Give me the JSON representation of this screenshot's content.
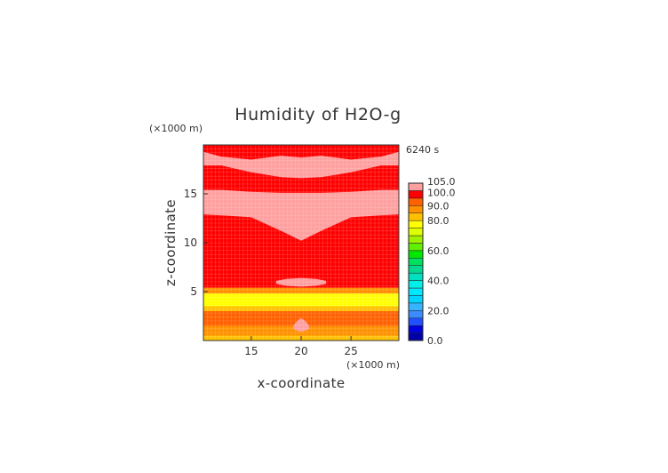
{
  "chart_data": {
    "type": "heatmap",
    "title": "Humidity of H2O-g",
    "time_label": "6240 s",
    "xlabel": "x-coordinate",
    "ylabel": "z-coordinate",
    "x_unit": "(×1000 m)",
    "y_unit": "(×1000 m)",
    "xlim": [
      10.2,
      29.8
    ],
    "ylim": [
      0.0,
      20.0
    ],
    "x_ticks": [
      {
        "value": 15,
        "label": "15"
      },
      {
        "value": 20,
        "label": "20"
      },
      {
        "value": 25,
        "label": "25"
      }
    ],
    "y_ticks": [
      {
        "value": 5,
        "label": "5"
      },
      {
        "value": 10,
        "label": "10"
      },
      {
        "value": 15,
        "label": "15"
      }
    ],
    "colorbar": {
      "ticks": [
        "0.0",
        "20.0",
        "40.0",
        "60.0",
        "80.0",
        "90.0",
        "100.0",
        "105.0"
      ],
      "levels": [
        {
          "lo": 0,
          "hi": 5,
          "color": "#0000a8"
        },
        {
          "lo": 5,
          "hi": 10,
          "color": "#0000e0"
        },
        {
          "lo": 10,
          "hi": 15,
          "color": "#2050ff"
        },
        {
          "lo": 15,
          "hi": 20,
          "color": "#3c8cff"
        },
        {
          "lo": 20,
          "hi": 25,
          "color": "#38b4ff"
        },
        {
          "lo": 25,
          "hi": 30,
          "color": "#00d4ff"
        },
        {
          "lo": 30,
          "hi": 35,
          "color": "#00e8ff"
        },
        {
          "lo": 35,
          "hi": 40,
          "color": "#00f0e8"
        },
        {
          "lo": 40,
          "hi": 45,
          "color": "#00e0c0"
        },
        {
          "lo": 45,
          "hi": 50,
          "color": "#00d890"
        },
        {
          "lo": 50,
          "hi": 55,
          "color": "#00e060"
        },
        {
          "lo": 55,
          "hi": 60,
          "color": "#00e800"
        },
        {
          "lo": 60,
          "hi": 65,
          "color": "#60f000"
        },
        {
          "lo": 65,
          "hi": 70,
          "color": "#a0f000"
        },
        {
          "lo": 70,
          "hi": 75,
          "color": "#e0ff00"
        },
        {
          "lo": 75,
          "hi": 80,
          "color": "#ffff00"
        },
        {
          "lo": 80,
          "hi": 85,
          "color": "#ffc000"
        },
        {
          "lo": 85,
          "hi": 90,
          "color": "#ff9000"
        },
        {
          "lo": 90,
          "hi": 95,
          "color": "#ff6000"
        },
        {
          "lo": 95,
          "hi": 100,
          "color": "#ff0000"
        },
        {
          "lo": 100,
          "hi": 105,
          "color": "#ffa0a0"
        }
      ]
    },
    "regions": [
      {
        "z_lo": 0.0,
        "z_hi": 0.5,
        "value": 80
      },
      {
        "z_lo": 0.5,
        "z_hi": 1.5,
        "value": 87
      },
      {
        "z_lo": 1.5,
        "z_hi": 3.0,
        "value": 92
      },
      {
        "z_lo": 3.0,
        "z_hi": 3.5,
        "value": 82
      },
      {
        "z_lo": 3.5,
        "z_hi": 4.8,
        "value": 77
      },
      {
        "z_lo": 4.8,
        "z_hi": 5.4,
        "value": 87
      },
      {
        "z_lo": 5.4,
        "z_hi": 20.0,
        "value": 97
      }
    ],
    "saturated_zones": [
      {
        "x": [
          10.2,
          12.0,
          15.0,
          18.0,
          20.0,
          22.0,
          25.0,
          28.0,
          29.8
        ],
        "z_top": [
          19.3,
          18.8,
          18.5,
          18.9,
          18.7,
          18.9,
          18.5,
          18.8,
          19.3
        ],
        "z_bottom": [
          17.9,
          17.9,
          17.2,
          16.7,
          16.6,
          16.7,
          17.2,
          17.9,
          17.9
        ]
      },
      {
        "x": [
          10.2,
          12.0,
          15.0,
          18.0,
          20.0,
          22.0,
          25.0,
          28.0,
          29.8
        ],
        "z_top": [
          15.4,
          15.4,
          15.2,
          15.1,
          15.1,
          15.1,
          15.2,
          15.4,
          15.4
        ],
        "z_bottom": [
          12.9,
          12.8,
          12.6,
          11.2,
          10.2,
          11.2,
          12.6,
          12.8,
          12.9
        ]
      },
      {
        "x": [
          17.5,
          18.5,
          20.0,
          21.5,
          22.5
        ],
        "z_top": [
          6.1,
          6.3,
          6.4,
          6.3,
          6.1
        ],
        "z_bottom": [
          5.8,
          5.6,
          5.5,
          5.6,
          5.8
        ]
      },
      {
        "x": [
          19.2,
          19.6,
          20.0,
          20.4,
          20.8
        ],
        "z_top": [
          1.5,
          2.0,
          2.3,
          2.0,
          1.5
        ],
        "z_bottom": [
          1.2,
          1.0,
          0.9,
          1.0,
          1.2
        ]
      }
    ],
    "grid": true,
    "legend": "right"
  }
}
